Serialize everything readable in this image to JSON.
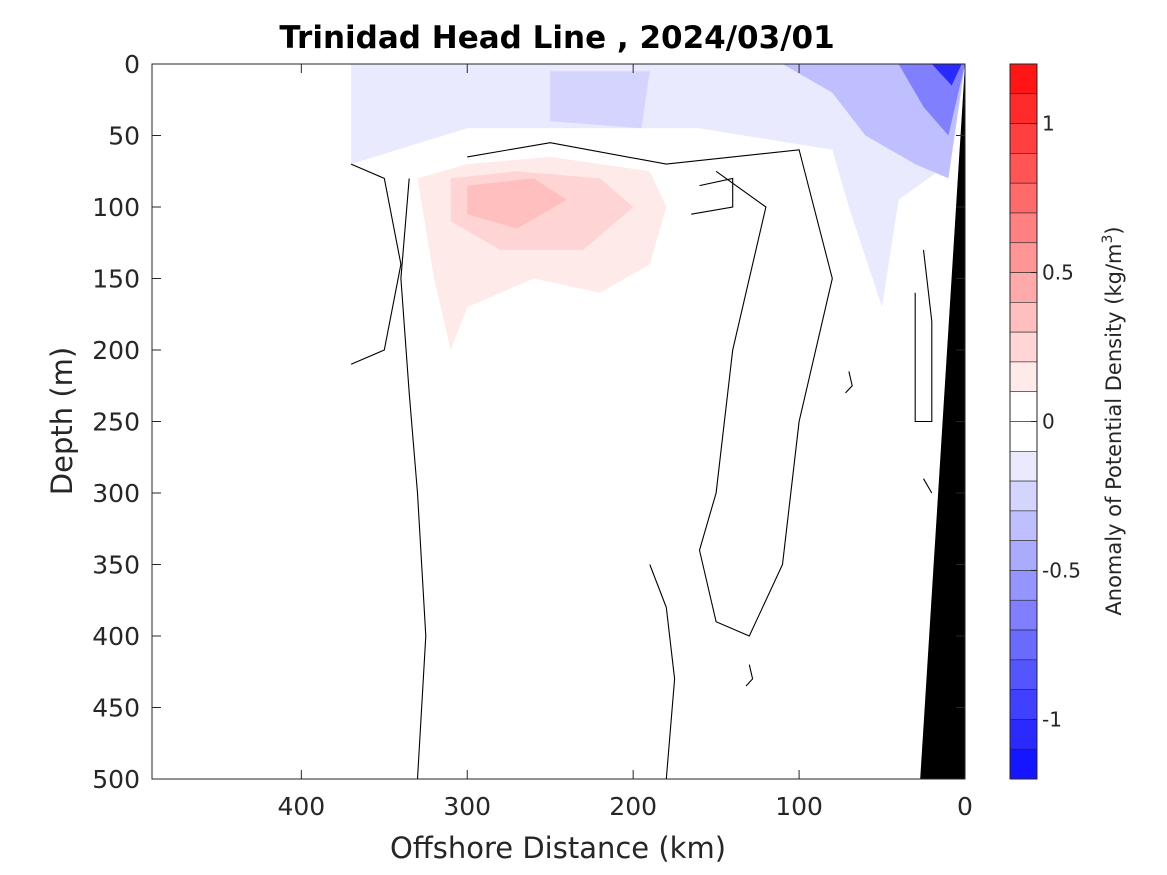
{
  "chart_data": {
    "type": "heatmap",
    "title": "Trinidad Head Line , 2024/03/01",
    "xlabel": "Offshore Distance (km)",
    "ylabel": "Depth (m)",
    "xlim": [
      490,
      0
    ],
    "ylim": [
      500,
      0
    ],
    "x_ticks": [
      400,
      300,
      200,
      100,
      0
    ],
    "y_ticks": [
      0,
      50,
      100,
      150,
      200,
      250,
      300,
      350,
      400,
      450,
      500
    ],
    "colorbar": {
      "label": "Anomaly of Potential Density (kg/m",
      "label_superscript": "3",
      "label_suffix": ")",
      "range": [
        -1.2,
        1.2
      ],
      "step": 0.1,
      "ticks": [
        {
          "value": 1,
          "label": "1"
        },
        {
          "value": 0.5,
          "label": "0.5"
        },
        {
          "value": 0,
          "label": "0"
        },
        {
          "value": -0.5,
          "label": "-0.5"
        },
        {
          "value": -1,
          "label": "-1"
        }
      ],
      "colormap": "blue-white-red"
    },
    "anomaly_regions": [
      {
        "name": "surface negative layer",
        "polygon": [
          [
            370,
            0
          ],
          [
            0,
            0
          ],
          [
            10,
            70
          ],
          [
            40,
            95
          ],
          [
            50,
            170
          ],
          [
            70,
            100
          ],
          [
            80,
            60
          ],
          [
            160,
            45
          ],
          [
            300,
            45
          ],
          [
            370,
            70
          ]
        ],
        "value": -0.1
      },
      {
        "name": "surface negative core",
        "polygon": [
          [
            250,
            5
          ],
          [
            190,
            5
          ],
          [
            195,
            45
          ],
          [
            250,
            40
          ]
        ],
        "value": -0.2
      },
      {
        "name": "nearshore negative core",
        "polygon": [
          [
            110,
            0
          ],
          [
            0,
            0
          ],
          [
            10,
            80
          ],
          [
            30,
            70
          ],
          [
            60,
            50
          ],
          [
            80,
            20
          ]
        ],
        "value": -0.3
      },
      {
        "name": "nearshore strong negative",
        "polygon": [
          [
            40,
            0
          ],
          [
            0,
            0
          ],
          [
            10,
            50
          ],
          [
            25,
            30
          ]
        ],
        "value": -0.6
      },
      {
        "name": "coastal strongest negative",
        "polygon": [
          [
            20,
            0
          ],
          [
            2,
            0
          ],
          [
            8,
            15
          ]
        ],
        "value": -1.0
      },
      {
        "name": "subsurface positive layer",
        "polygon": [
          [
            330,
            80
          ],
          [
            300,
            70
          ],
          [
            250,
            65
          ],
          [
            190,
            75
          ],
          [
            180,
            100
          ],
          [
            190,
            140
          ],
          [
            220,
            160
          ],
          [
            260,
            150
          ],
          [
            300,
            170
          ],
          [
            310,
            200
          ],
          [
            320,
            150
          ]
        ],
        "value": 0.1
      },
      {
        "name": "subsurface positive mid",
        "polygon": [
          [
            310,
            80
          ],
          [
            270,
            75
          ],
          [
            220,
            80
          ],
          [
            200,
            100
          ],
          [
            230,
            130
          ],
          [
            280,
            130
          ],
          [
            310,
            110
          ]
        ],
        "value": 0.2
      },
      {
        "name": "subsurface positive core",
        "polygon": [
          [
            300,
            85
          ],
          [
            260,
            80
          ],
          [
            240,
            95
          ],
          [
            270,
            115
          ],
          [
            300,
            105
          ]
        ],
        "value": 0.3
      }
    ],
    "zero_contours": [
      [
        [
          370,
          70
        ],
        [
          350,
          80
        ],
        [
          340,
          140
        ],
        [
          350,
          200
        ],
        [
          370,
          210
        ]
      ],
      [
        [
          330,
          500
        ],
        [
          325,
          400
        ],
        [
          330,
          300
        ],
        [
          335,
          230
        ],
        [
          340,
          150
        ],
        [
          335,
          80
        ]
      ],
      [
        [
          300,
          65
        ],
        [
          250,
          55
        ],
        [
          180,
          70
        ],
        [
          100,
          60
        ],
        [
          80,
          150
        ],
        [
          100,
          250
        ],
        [
          110,
          350
        ],
        [
          130,
          400
        ],
        [
          150,
          390
        ],
        [
          160,
          340
        ],
        [
          150,
          300
        ],
        [
          140,
          200
        ],
        [
          120,
          100
        ],
        [
          150,
          75
        ]
      ],
      [
        [
          180,
          500
        ],
        [
          175,
          430
        ],
        [
          180,
          380
        ],
        [
          190,
          350
        ]
      ],
      [
        [
          160,
          85
        ],
        [
          140,
          80
        ],
        [
          140,
          100
        ],
        [
          165,
          105
        ]
      ],
      [
        [
          70,
          215
        ],
        [
          68,
          225
        ],
        [
          72,
          230
        ]
      ],
      [
        [
          130,
          420
        ],
        [
          128,
          430
        ],
        [
          132,
          435
        ]
      ],
      [
        [
          25,
          130
        ],
        [
          20,
          180
        ],
        [
          20,
          250
        ],
        [
          30,
          250
        ],
        [
          30,
          160
        ]
      ],
      [
        [
          25,
          290
        ],
        [
          20,
          300
        ]
      ]
    ],
    "seafloor_bathymetry": [
      [
        0,
        0
      ],
      [
        27,
        500
      ]
    ]
  }
}
